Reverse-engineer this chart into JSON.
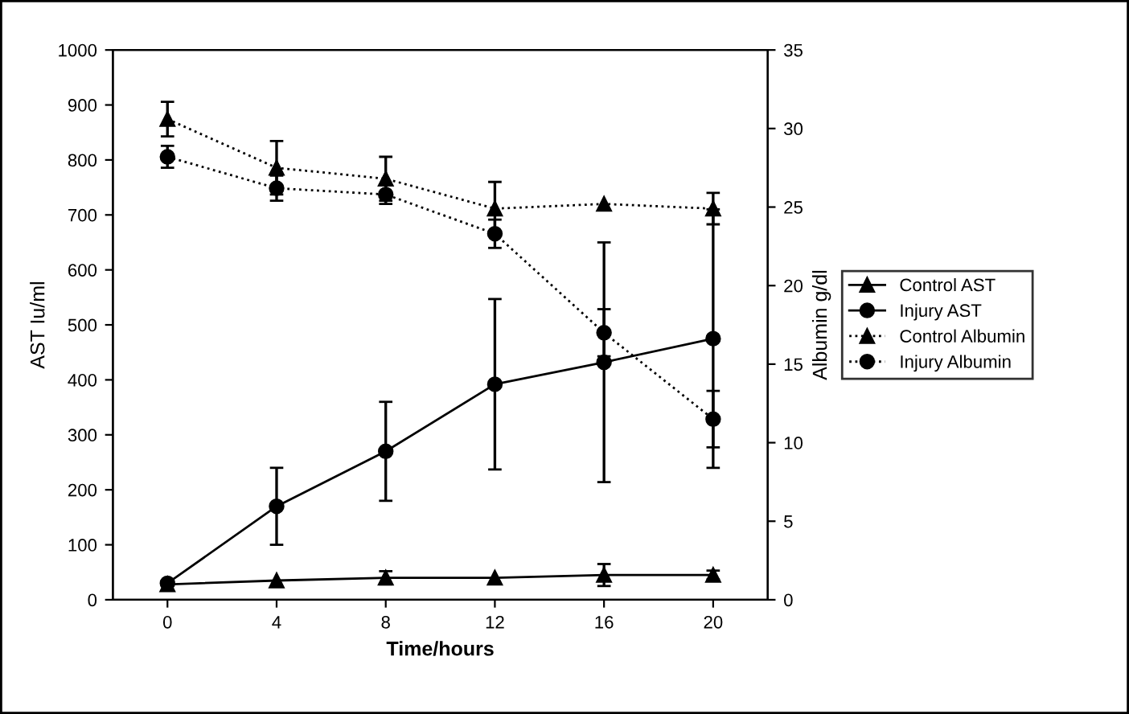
{
  "chart_data": {
    "type": "line",
    "xlabel": "Time/hours",
    "ylabel": "AST Iu/ml",
    "y2label": "Albumin g/dl",
    "categories": [
      "0",
      "4",
      "8",
      "12",
      "16",
      "20"
    ],
    "ylim": [
      0,
      1000
    ],
    "yticks": [
      0,
      100,
      200,
      300,
      400,
      500,
      600,
      700,
      800,
      900,
      1000
    ],
    "y2lim": [
      0,
      35
    ],
    "y2ticks": [
      0,
      5,
      10,
      15,
      20,
      25,
      30,
      35
    ],
    "grid": false,
    "legend": "right",
    "series": [
      {
        "name": "Control AST",
        "color": "#000000",
        "marker": "triangle",
        "line_style": "solid",
        "values": [
          28,
          35,
          40,
          40,
          45,
          45
        ],
        "errors": [
          null,
          null,
          12,
          null,
          20,
          8
        ]
      },
      {
        "name": "Injury AST",
        "color": "#000000",
        "marker": "circle",
        "line_style": "solid",
        "values": [
          30,
          170,
          270,
          392,
          432,
          475
        ],
        "errors": [
          null,
          70,
          90,
          155,
          218,
          235
        ]
      },
      {
        "name": "Control Albumin",
        "color": "#000000",
        "marker": "triangle",
        "line_style": "dotted",
        "axis": "y2",
        "values": [
          30.6,
          27.5,
          26.8,
          24.9,
          25.2,
          24.9
        ],
        "errors": [
          1.1,
          1.7,
          1.4,
          1.7,
          null,
          1.0
        ]
      },
      {
        "name": "Injury Albumin",
        "color": "#000000",
        "marker": "circle",
        "line_style": "dotted",
        "axis": "y2",
        "values": [
          28.2,
          26.2,
          25.8,
          23.3,
          17.0,
          11.5
        ],
        "errors": [
          0.7,
          0.8,
          0.6,
          0.9,
          1.5,
          1.8
        ]
      }
    ]
  }
}
